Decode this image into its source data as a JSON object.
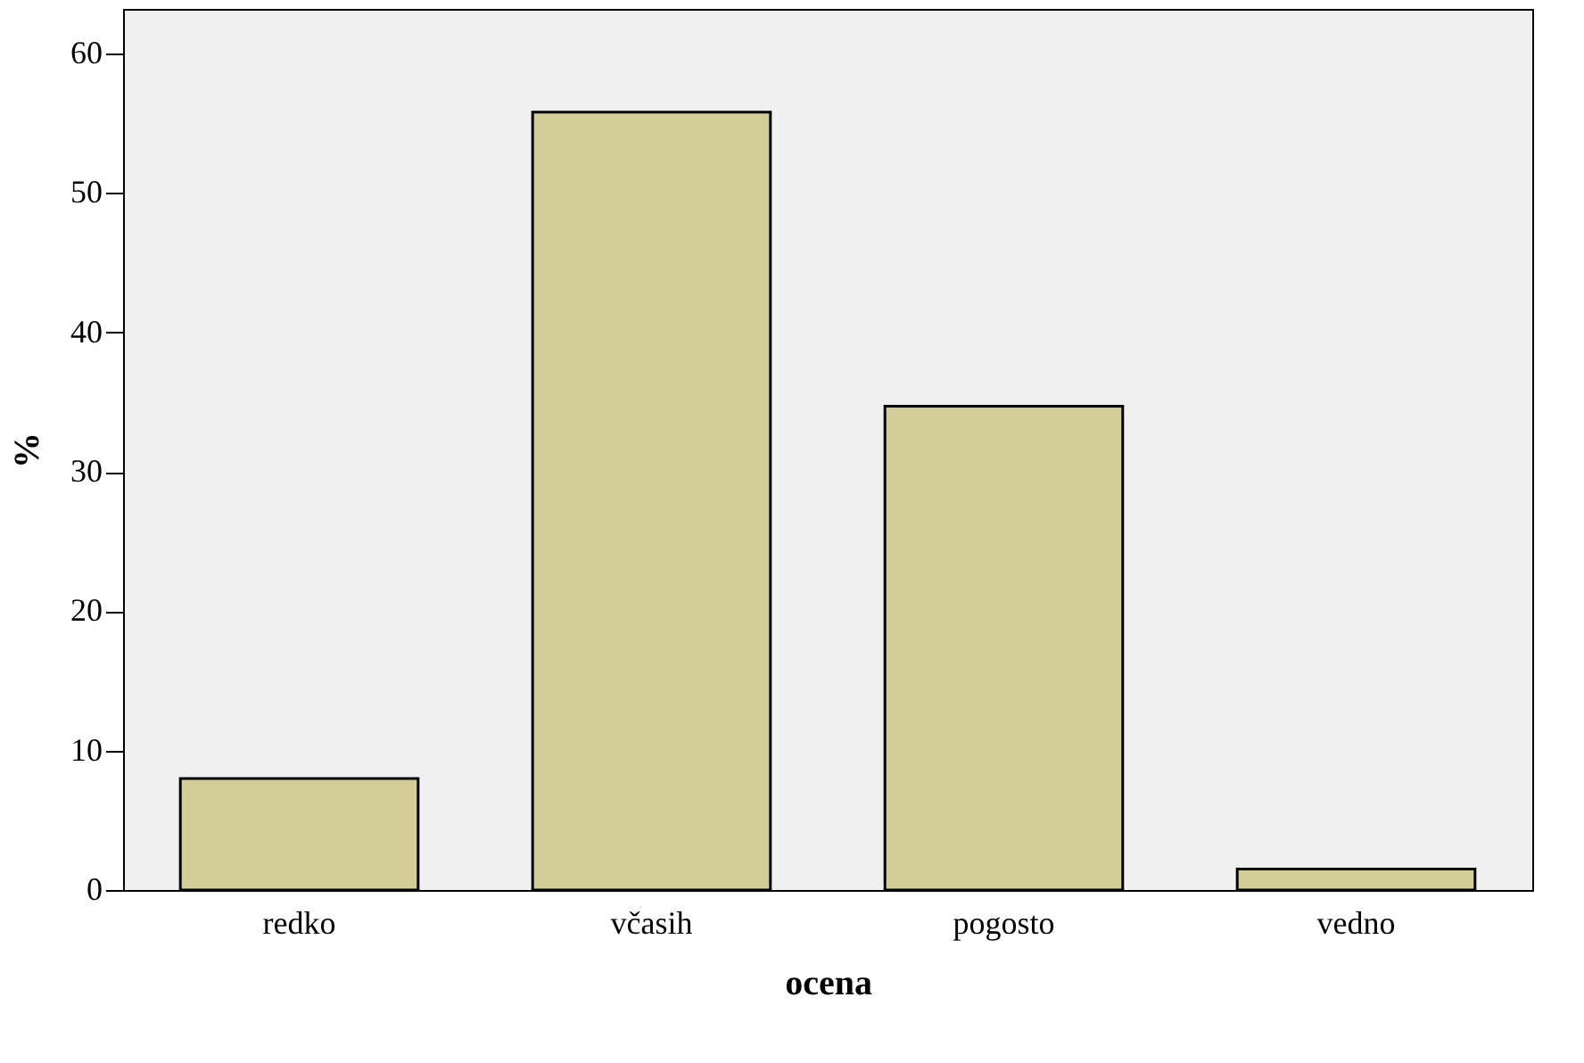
{
  "chart_data": {
    "type": "bar",
    "xlabel": "ocena",
    "ylabel": "%",
    "categories": [
      "redko",
      "včasih",
      "pogosto",
      "vedno"
    ],
    "values": [
      8.0,
      55.8,
      34.7,
      1.5
    ],
    "color": "#d3ce98",
    "ylim": [
      0,
      63.2
    ],
    "yticks": [
      0,
      10,
      20,
      30,
      40,
      50,
      60
    ],
    "grid": false
  }
}
